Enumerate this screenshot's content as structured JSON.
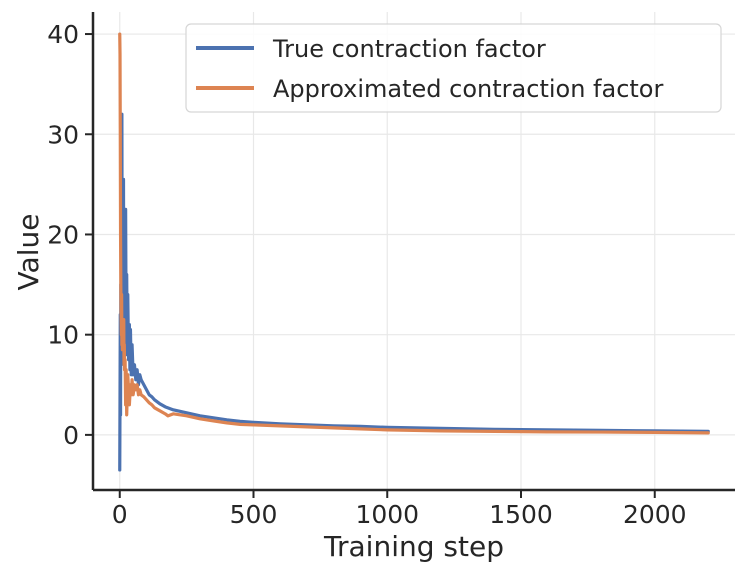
{
  "chart_data": {
    "type": "line",
    "title": "",
    "xlabel": "Training step",
    "ylabel": "Value",
    "xlim": [
      -100,
      2300
    ],
    "ylim": [
      -5.5,
      42.2
    ],
    "x_ticks": [
      0,
      500,
      1000,
      1500,
      2000
    ],
    "y_ticks": [
      0,
      10,
      20,
      30,
      40
    ],
    "x_tick_labels": [
      "0",
      "500",
      "1000",
      "1500",
      "2000"
    ],
    "y_tick_labels": [
      "0",
      "10",
      "20",
      "30",
      "40"
    ],
    "grid": true,
    "legend_position": "upper-right",
    "series": [
      {
        "name": "True contraction factor",
        "color": "#4c72b0",
        "points": [
          [
            0,
            -3.5
          ],
          [
            1,
            4
          ],
          [
            2,
            12
          ],
          [
            3,
            2
          ],
          [
            4,
            15
          ],
          [
            5,
            7
          ],
          [
            6,
            25
          ],
          [
            7,
            11
          ],
          [
            8,
            32
          ],
          [
            9,
            14
          ],
          [
            10,
            22
          ],
          [
            11,
            9
          ],
          [
            12,
            18
          ],
          [
            13,
            13
          ],
          [
            14,
            25.5
          ],
          [
            15,
            10
          ],
          [
            16,
            20
          ],
          [
            17,
            8.5
          ],
          [
            18,
            16
          ],
          [
            20,
            11
          ],
          [
            22,
            22.5
          ],
          [
            24,
            9
          ],
          [
            26,
            16
          ],
          [
            28,
            8
          ],
          [
            30,
            14
          ],
          [
            33,
            7.5
          ],
          [
            36,
            11
          ],
          [
            38,
            6.5
          ],
          [
            40,
            10.5
          ],
          [
            43,
            6
          ],
          [
            46,
            9
          ],
          [
            50,
            6
          ],
          [
            55,
            7
          ],
          [
            60,
            5.5
          ],
          [
            65,
            6.5
          ],
          [
            70,
            5
          ],
          [
            75,
            6
          ],
          [
            80,
            5.5
          ],
          [
            90,
            5
          ],
          [
            100,
            4.5
          ],
          [
            110,
            4
          ],
          [
            120,
            3.8
          ],
          [
            130,
            3.5
          ],
          [
            150,
            3.1
          ],
          [
            170,
            2.8
          ],
          [
            200,
            2.5
          ],
          [
            250,
            2.2
          ],
          [
            300,
            1.9
          ],
          [
            350,
            1.7
          ],
          [
            400,
            1.5
          ],
          [
            450,
            1.35
          ],
          [
            500,
            1.25
          ],
          [
            600,
            1.1
          ],
          [
            700,
            1.0
          ],
          [
            800,
            0.9
          ],
          [
            900,
            0.85
          ],
          [
            1000,
            0.75
          ],
          [
            1200,
            0.65
          ],
          [
            1400,
            0.55
          ],
          [
            1600,
            0.5
          ],
          [
            1800,
            0.45
          ],
          [
            2000,
            0.4
          ],
          [
            2200,
            0.35
          ]
        ]
      },
      {
        "name": "Approximated contraction factor",
        "color": "#dd8452",
        "points": [
          [
            0,
            40
          ],
          [
            1,
            38
          ],
          [
            2,
            30
          ],
          [
            3,
            20
          ],
          [
            4,
            15
          ],
          [
            5,
            12
          ],
          [
            6,
            10
          ],
          [
            7,
            14
          ],
          [
            8,
            9
          ],
          [
            9,
            11.5
          ],
          [
            10,
            8.5
          ],
          [
            11,
            11
          ],
          [
            12,
            9
          ],
          [
            13,
            10
          ],
          [
            14,
            8.5
          ],
          [
            15,
            11.5
          ],
          [
            16,
            7
          ],
          [
            17,
            9
          ],
          [
            18,
            6.5
          ],
          [
            20,
            7.5
          ],
          [
            22,
            3
          ],
          [
            24,
            6.5
          ],
          [
            26,
            2
          ],
          [
            28,
            4
          ],
          [
            30,
            6
          ],
          [
            33,
            4.5
          ],
          [
            36,
            3
          ],
          [
            40,
            5
          ],
          [
            43,
            4
          ],
          [
            46,
            5.5
          ],
          [
            50,
            4
          ],
          [
            55,
            5
          ],
          [
            60,
            4.5
          ],
          [
            65,
            5
          ],
          [
            70,
            4
          ],
          [
            75,
            4.5
          ],
          [
            80,
            4
          ],
          [
            90,
            3.8
          ],
          [
            100,
            3.5
          ],
          [
            110,
            3.2
          ],
          [
            120,
            3.0
          ],
          [
            130,
            2.7
          ],
          [
            150,
            2.4
          ],
          [
            170,
            2.1
          ],
          [
            180,
            1.9
          ],
          [
            200,
            2.1
          ],
          [
            250,
            1.9
          ],
          [
            300,
            1.6
          ],
          [
            350,
            1.4
          ],
          [
            400,
            1.2
          ],
          [
            450,
            1.05
          ],
          [
            500,
            1.0
          ],
          [
            600,
            0.9
          ],
          [
            700,
            0.8
          ],
          [
            800,
            0.7
          ],
          [
            900,
            0.6
          ],
          [
            1000,
            0.5
          ],
          [
            1200,
            0.4
          ],
          [
            1400,
            0.35
          ],
          [
            1600,
            0.3
          ],
          [
            1800,
            0.28
          ],
          [
            2000,
            0.25
          ],
          [
            2200,
            0.2
          ]
        ]
      }
    ]
  }
}
